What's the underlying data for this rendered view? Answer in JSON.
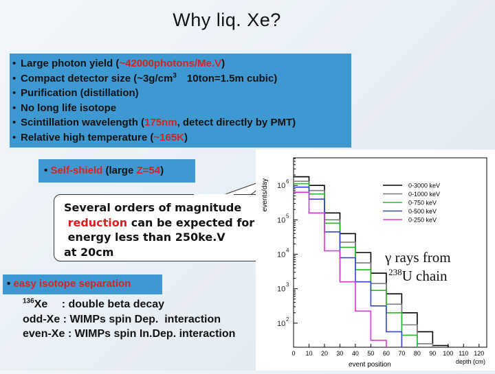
{
  "title": "Why liq. Xe?",
  "properties": [
    {
      "pre": "Large photon yield (",
      "hl": "~42000photons/Me.V",
      "post": ")"
    },
    {
      "pre": "Compact detector size (~3g/cm",
      "sup": "3",
      "post": "　10ton=1.5m cubic)"
    },
    {
      "pre": "Purification (distillation)"
    },
    {
      "pre": "No long life isotope"
    },
    {
      "pre": "Scintillation wavelength (",
      "hl": "175nm",
      "post": ", detect directly by PMT)"
    },
    {
      "pre": "Relative high temperature (",
      "hl": "~165K",
      "post": ")"
    }
  ],
  "bullet": "•",
  "self_shield": {
    "hl": "Self-shield",
    "mid": " (large ",
    "z": "Z=54",
    "post": ")"
  },
  "callout": {
    "lines": [
      "Several orders of magnitude",
      " reduction can be expected for",
      " energy less than 250ke.V",
      "at 20cm"
    ]
  },
  "easy_isotope": "easy isotope separation",
  "xe_lines": [
    {
      "sup": "136",
      "text": "Xe　 : double beta decay"
    },
    {
      "text": "odd-Xe : WIMPs spin Dep.  interaction"
    },
    {
      "text": "even-Xe : WIMPs spin In.Dep. interaction"
    }
  ],
  "gamma_note": {
    "line1": "γ rays from",
    "sup": "238",
    "line2": "U chain"
  },
  "chart_data": {
    "type": "line",
    "ylabel": "events/day",
    "xlabel": "event position",
    "xlabel2": "depth (cm)",
    "x_ticks": [
      "0",
      "10",
      "20",
      "30",
      "40",
      "50",
      "60",
      "70",
      "80",
      "90",
      "100",
      "110",
      "120"
    ],
    "y_ticks": [
      {
        "base": "10",
        "exp": "6",
        "value": 1000000
      },
      {
        "base": "10",
        "exp": "5",
        "value": 100000
      },
      {
        "base": "10",
        "exp": "4",
        "value": 10000
      },
      {
        "base": "10",
        "exp": "3",
        "value": 1000
      },
      {
        "base": "10",
        "exp": "2",
        "value": 100
      }
    ],
    "xlim": [
      0,
      125
    ],
    "ylim_log10": [
      1.3,
      6.8
    ],
    "log_scale_y": true,
    "legend_position": "top-right",
    "series": [
      {
        "name": "0-3000 keV",
        "color": "#000000",
        "steps": [
          [
            0,
            6.25
          ],
          [
            10,
            6.0
          ],
          [
            20,
            5.2
          ],
          [
            30,
            4.6
          ],
          [
            40,
            4.05
          ],
          [
            50,
            3.45
          ],
          [
            60,
            2.85
          ],
          [
            70,
            2.3
          ],
          [
            80,
            1.75
          ],
          [
            90,
            1.35
          ]
        ]
      },
      {
        "name": "0-1000 keV",
        "color": "#7a7a7a",
        "steps": [
          [
            0,
            6.12
          ],
          [
            10,
            5.85
          ],
          [
            20,
            5.0
          ],
          [
            30,
            4.35
          ],
          [
            40,
            3.75
          ],
          [
            50,
            3.15
          ],
          [
            60,
            2.55
          ],
          [
            70,
            1.95
          ],
          [
            80,
            1.4
          ]
        ]
      },
      {
        "name": "0-750 keV",
        "color": "#22bb22",
        "steps": [
          [
            0,
            6.05
          ],
          [
            10,
            5.75
          ],
          [
            20,
            4.9
          ],
          [
            30,
            4.2
          ],
          [
            40,
            3.55
          ],
          [
            50,
            2.95
          ],
          [
            60,
            2.3
          ],
          [
            70,
            1.65
          ]
        ]
      },
      {
        "name": "0-500 keV",
        "color": "#3344dd",
        "steps": [
          [
            0,
            5.95
          ],
          [
            10,
            5.6
          ],
          [
            20,
            4.65
          ],
          [
            30,
            3.9
          ],
          [
            40,
            3.2
          ],
          [
            50,
            2.5
          ],
          [
            60,
            1.75
          ]
        ]
      },
      {
        "name": "0-250 keV",
        "color": "#dd33dd",
        "steps": [
          [
            0,
            5.8
          ],
          [
            10,
            5.2
          ],
          [
            20,
            4.1
          ],
          [
            30,
            3.2
          ],
          [
            40,
            2.35
          ],
          [
            50,
            1.5
          ]
        ]
      }
    ]
  }
}
